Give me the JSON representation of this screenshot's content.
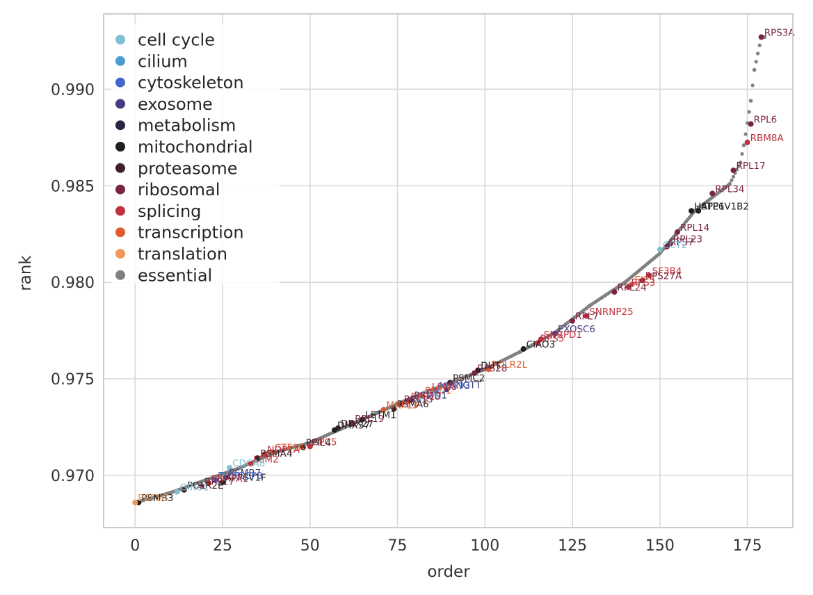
{
  "chart_data": {
    "type": "scatter",
    "xlabel": "order",
    "ylabel": "rank",
    "xlim": [
      -9,
      188
    ],
    "ylim": [
      0.9673,
      0.9939
    ],
    "x_ticks": [
      0,
      25,
      50,
      75,
      100,
      125,
      150,
      175
    ],
    "x_tick_labels": [
      "0",
      "25",
      "50",
      "75",
      "100",
      "125",
      "150",
      "175"
    ],
    "y_ticks": [
      0.97,
      0.975,
      0.98,
      0.985,
      0.99
    ],
    "y_tick_labels": [
      "0.970",
      "0.975",
      "0.980",
      "0.985",
      "0.990"
    ],
    "grid": true,
    "legend_position": "top-left",
    "legend": [
      {
        "name": "cell cycle",
        "color": "#7fbfd4"
      },
      {
        "name": "cilium",
        "color": "#4a9ad4"
      },
      {
        "name": "cytoskeleton",
        "color": "#4466cc"
      },
      {
        "name": "exosome",
        "color": "#443c80"
      },
      {
        "name": "metabolism",
        "color": "#2a2540"
      },
      {
        "name": "mitochondrial",
        "color": "#1f1f1f"
      },
      {
        "name": "proteasome",
        "color": "#3e2226"
      },
      {
        "name": "ribosomal",
        "color": "#7a2540"
      },
      {
        "name": "splicing",
        "color": "#c0323e"
      },
      {
        "name": "transcription",
        "color": "#e05a30"
      },
      {
        "name": "translation",
        "color": "#f0985a"
      },
      {
        "name": "essential",
        "color": "#808080"
      }
    ],
    "essential_curve": [
      [
        0,
        0.9686
      ],
      [
        10,
        0.9691
      ],
      [
        20,
        0.96975
      ],
      [
        30,
        0.9704
      ],
      [
        40,
        0.9712
      ],
      [
        50,
        0.9717
      ],
      [
        60,
        0.9725
      ],
      [
        70,
        0.9733
      ],
      [
        80,
        0.9741
      ],
      [
        90,
        0.9748
      ],
      [
        100,
        0.9755
      ],
      [
        110,
        0.9764
      ],
      [
        120,
        0.9774
      ],
      [
        130,
        0.9788
      ],
      [
        140,
        0.98
      ],
      [
        150,
        0.9815
      ],
      [
        160,
        0.9837
      ],
      [
        170,
        0.9851
      ],
      [
        173,
        0.9862
      ],
      [
        174,
        0.9871
      ],
      [
        176,
        0.9894
      ],
      [
        177,
        0.991
      ],
      [
        179,
        0.9927
      ]
    ],
    "labeled_points": [
      {
        "label": "RPS3A",
        "x": 179,
        "y": 0.9927,
        "category": "ribosomal"
      },
      {
        "label": "RPL6",
        "x": 176,
        "y": 0.9882,
        "category": "ribosomal"
      },
      {
        "label": "RBM8A",
        "x": 175,
        "y": 0.98725,
        "category": "splicing"
      },
      {
        "label": "RPL17",
        "x": 171,
        "y": 0.9858,
        "category": "ribosomal"
      },
      {
        "label": "RPL34",
        "x": 165,
        "y": 0.9846,
        "category": "ribosomal"
      },
      {
        "label": "ATP6V1B2",
        "x": 161,
        "y": 0.9837,
        "category": "mitochondrial"
      },
      {
        "label": "HSPE1",
        "x": 159,
        "y": 0.9837,
        "category": "mitochondrial"
      },
      {
        "label": "RPL14",
        "x": 155,
        "y": 0.9826,
        "category": "ribosomal"
      },
      {
        "label": "RPL23",
        "x": 153,
        "y": 0.982,
        "category": "ribosomal"
      },
      {
        "label": "RPS7",
        "x": 152,
        "y": 0.98185,
        "category": "ribosomal"
      },
      {
        "label": "CCT2",
        "x": 150,
        "y": 0.9817,
        "category": "cell cycle"
      },
      {
        "label": "SF3B4",
        "x": 147,
        "y": 0.98035,
        "category": "splicing"
      },
      {
        "label": "RPS27A",
        "x": 145,
        "y": 0.9801,
        "category": "ribosomal"
      },
      {
        "label": "EIF3",
        "x": 142,
        "y": 0.9799,
        "category": "transcription"
      },
      {
        "label": "RPS3",
        "x": 141,
        "y": 0.97975,
        "category": "splicing"
      },
      {
        "label": "RPL24",
        "x": 137,
        "y": 0.9795,
        "category": "ribosomal"
      },
      {
        "label": "SNRNP25",
        "x": 129,
        "y": 0.97825,
        "category": "splicing"
      },
      {
        "label": "RPL7",
        "x": 125,
        "y": 0.978,
        "category": "ribosomal"
      },
      {
        "label": "EXOSC6",
        "x": 120,
        "y": 0.97735,
        "category": "exosome"
      },
      {
        "label": "SNRPD1",
        "x": 116,
        "y": 0.97705,
        "category": "splicing"
      },
      {
        "label": "RPS5",
        "x": 115,
        "y": 0.97685,
        "category": "splicing"
      },
      {
        "label": "CIAO3",
        "x": 111,
        "y": 0.97655,
        "category": "mitochondrial"
      },
      {
        "label": "POLR2L",
        "x": 101,
        "y": 0.9755,
        "category": "transcription"
      },
      {
        "label": "DUT",
        "x": 98,
        "y": 0.97545,
        "category": "mitochondrial"
      },
      {
        "label": "RPS28",
        "x": 97,
        "y": 0.9753,
        "category": "ribosomal"
      },
      {
        "label": "PSMC2",
        "x": 90,
        "y": 0.9748,
        "category": "proteasome"
      },
      {
        "label": "RNGTT",
        "x": 89,
        "y": 0.97445,
        "category": "exosome"
      },
      {
        "label": "NUP93",
        "x": 86,
        "y": 0.9744,
        "category": "cytoskeleton"
      },
      {
        "label": "LSM8",
        "x": 84,
        "y": 0.97435,
        "category": "splicing"
      },
      {
        "label": "SMU1",
        "x": 82,
        "y": 0.97415,
        "category": "transcription"
      },
      {
        "label": "CDK1",
        "x": 81,
        "y": 0.97395,
        "category": "cell cycle"
      },
      {
        "label": "PSMD1",
        "x": 79,
        "y": 0.9739,
        "category": "exosome"
      },
      {
        "label": "RPS13",
        "x": 78,
        "y": 0.97385,
        "category": "splicing"
      },
      {
        "label": "RPL15",
        "x": 76,
        "y": 0.9737,
        "category": "ribosomal"
      },
      {
        "label": "PSMA6",
        "x": 74,
        "y": 0.97345,
        "category": "proteasome"
      },
      {
        "label": "MRPL3",
        "x": 71,
        "y": 0.9734,
        "category": "transcription"
      },
      {
        "label": "LETM1",
        "x": 65,
        "y": 0.9729,
        "category": "mitochondrial"
      },
      {
        "label": "RPL19",
        "x": 62,
        "y": 0.9727,
        "category": "ribosomal"
      },
      {
        "label": "DDX27",
        "x": 58,
        "y": 0.97245,
        "category": "proteasome"
      },
      {
        "label": "DHX37",
        "x": 57,
        "y": 0.97235,
        "category": "mitochondrial"
      },
      {
        "label": "SPC5",
        "x": 50,
        "y": 0.9715,
        "category": "splicing"
      },
      {
        "label": "PPIL4",
        "x": 48,
        "y": 0.97145,
        "category": "proteasome"
      },
      {
        "label": "GTF3A",
        "x": 39,
        "y": 0.9712,
        "category": "transcription"
      },
      {
        "label": "NOP2A",
        "x": 37,
        "y": 0.9711,
        "category": "splicing"
      },
      {
        "label": "PSMA4",
        "x": 35,
        "y": 0.9709,
        "category": "proteasome"
      },
      {
        "label": "LSM2",
        "x": 33,
        "y": 0.9706,
        "category": "splicing"
      },
      {
        "label": "CDCA8",
        "x": 27,
        "y": 0.9704,
        "category": "cell cycle"
      },
      {
        "label": "PSMB7",
        "x": 26,
        "y": 0.9699,
        "category": "exosome"
      },
      {
        "label": "ATP6V1F",
        "x": 25,
        "y": 0.96965,
        "category": "mitochondrial"
      },
      {
        "label": "TUBGCP3",
        "x": 23,
        "y": 0.96975,
        "category": "cytoskeleton"
      },
      {
        "label": "SNRPA1",
        "x": 21,
        "y": 0.9696,
        "category": "splicing"
      },
      {
        "label": "RPS17",
        "x": 19,
        "y": 0.96945,
        "category": "ribosomal"
      },
      {
        "label": "POLR2E",
        "x": 14,
        "y": 0.96925,
        "category": "proteasome"
      },
      {
        "label": "GINS1",
        "x": 12,
        "y": 0.96915,
        "category": "cell cycle"
      },
      {
        "label": "PSMB3",
        "x": 1,
        "y": 0.9686,
        "category": "mitochondrial"
      },
      {
        "label": "EEF1G",
        "x": 0,
        "y": 0.9686,
        "category": "translation"
      }
    ]
  }
}
